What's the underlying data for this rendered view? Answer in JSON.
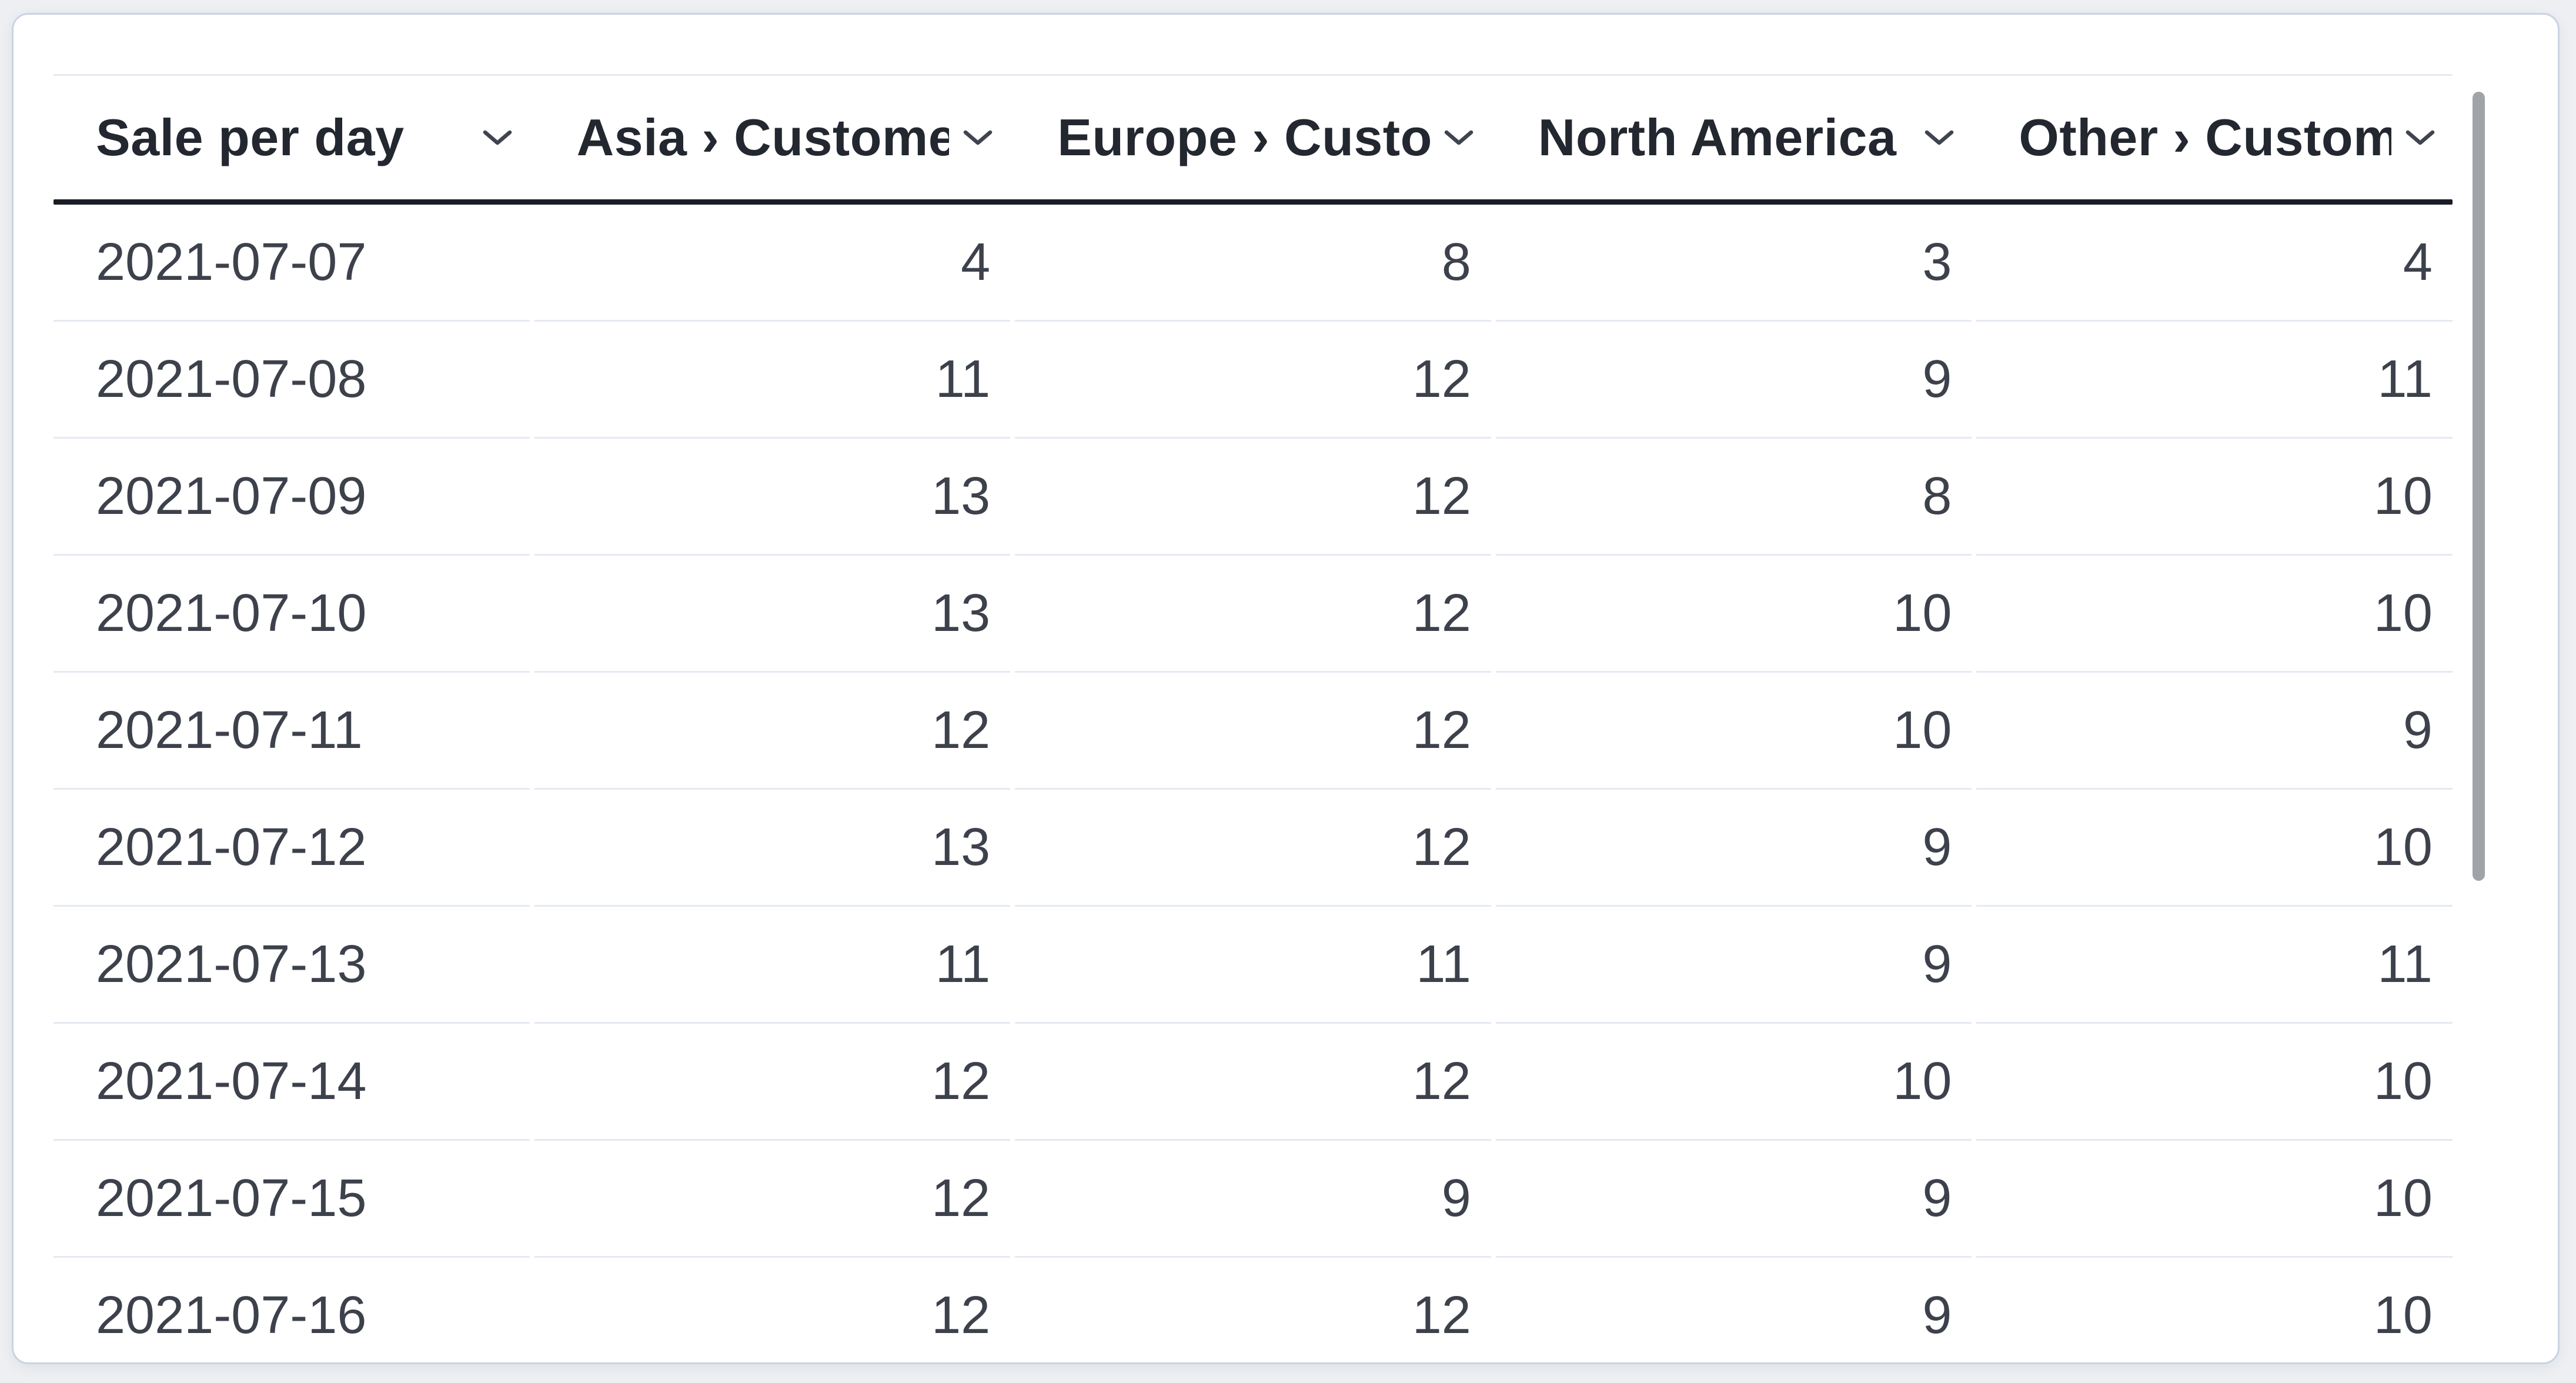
{
  "card": {
    "type": "table-visualization"
  },
  "table": {
    "columns": [
      {
        "label": "Sale per day",
        "align": "left"
      },
      {
        "label": "Asia › Customers",
        "align": "right"
      },
      {
        "label": "Europe › Customers",
        "align": "right"
      },
      {
        "label": "North America › Customers",
        "align": "right"
      },
      {
        "label": "Other › Customers",
        "align": "right"
      }
    ],
    "rows": [
      [
        "2021-07-07",
        "4",
        "8",
        "3",
        "4"
      ],
      [
        "2021-07-08",
        "11",
        "12",
        "9",
        "11"
      ],
      [
        "2021-07-09",
        "13",
        "12",
        "8",
        "10"
      ],
      [
        "2021-07-10",
        "13",
        "12",
        "10",
        "10"
      ],
      [
        "2021-07-11",
        "12",
        "12",
        "10",
        "9"
      ],
      [
        "2021-07-12",
        "13",
        "12",
        "9",
        "10"
      ],
      [
        "2021-07-13",
        "11",
        "11",
        "9",
        "11"
      ],
      [
        "2021-07-14",
        "12",
        "12",
        "10",
        "10"
      ],
      [
        "2021-07-15",
        "12",
        "9",
        "9",
        "10"
      ],
      [
        "2021-07-16",
        "12",
        "12",
        "9",
        "10"
      ]
    ]
  },
  "icons": {
    "header_sort": "chevron-down-icon"
  },
  "scrollbar": {
    "orientation": "vertical",
    "thumb_color": "#a0a3a8"
  },
  "colors": {
    "page_bg": "#edeff2",
    "card_bg": "#ffffff",
    "card_border": "#c9d3e2",
    "header_text": "#23272f",
    "header_underline": "#191d25",
    "cell_text": "#3c414b",
    "row_border": "#e4e9f2"
  },
  "chart_data": {
    "type": "table",
    "title": "Sale per day",
    "categories": [
      "2021-07-07",
      "2021-07-08",
      "2021-07-09",
      "2021-07-10",
      "2021-07-11",
      "2021-07-12",
      "2021-07-13",
      "2021-07-14",
      "2021-07-15",
      "2021-07-16"
    ],
    "series": [
      {
        "name": "Asia › Customers",
        "values": [
          4,
          11,
          13,
          13,
          12,
          13,
          11,
          12,
          12,
          12
        ]
      },
      {
        "name": "Europe › Customers",
        "values": [
          8,
          12,
          12,
          12,
          12,
          12,
          11,
          12,
          9,
          12
        ]
      },
      {
        "name": "North America › Customers",
        "values": [
          3,
          9,
          8,
          10,
          10,
          9,
          9,
          10,
          9,
          9
        ]
      },
      {
        "name": "Other › Customers",
        "values": [
          4,
          11,
          10,
          10,
          9,
          10,
          11,
          10,
          10,
          10
        ]
      }
    ]
  }
}
